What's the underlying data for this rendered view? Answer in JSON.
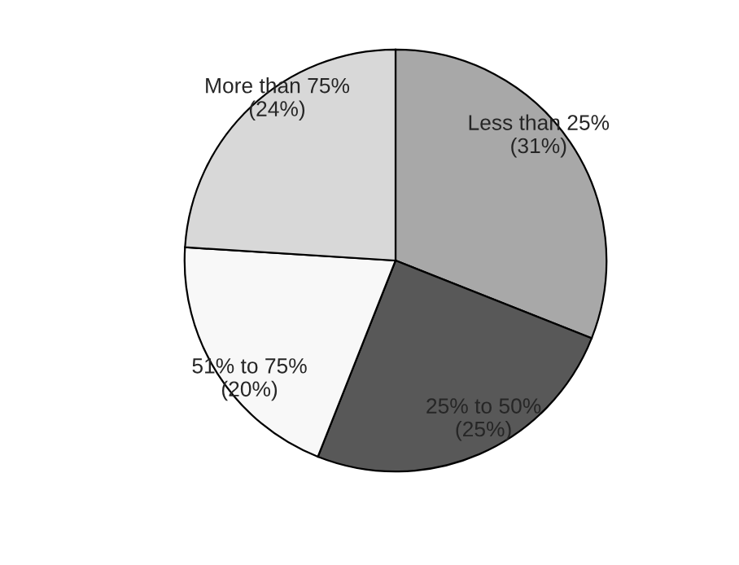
{
  "chart_data": {
    "type": "pie",
    "categories": [
      "Less than 25%",
      "25% to 50%",
      "51% to 75%",
      "More than 75%"
    ],
    "values": [
      31,
      25,
      20,
      24
    ],
    "value_labels": [
      "(31%)",
      "(25%)",
      "(20%)",
      "(24%)"
    ],
    "colors": [
      "#a8a8a8",
      "#585858",
      "#f8f8f8",
      "#d8d8d8"
    ]
  }
}
